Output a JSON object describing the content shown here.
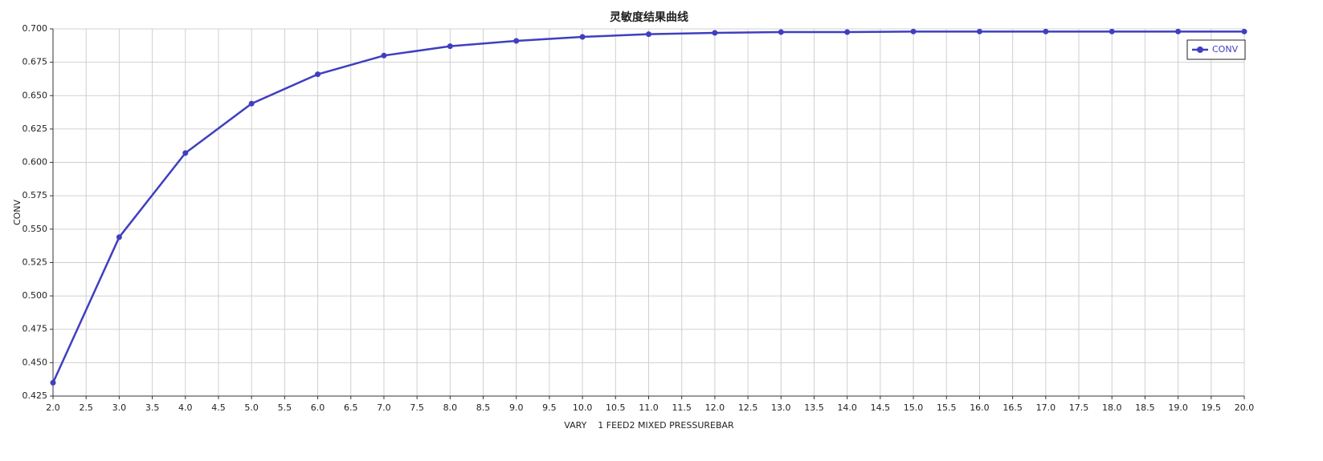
{
  "chart_data": {
    "type": "line",
    "title": "灵敏度结果曲线",
    "x_label": "VARY    1 FEED2 MIXED PRESSUREBAR",
    "y_label": "CONV",
    "x": [
      2,
      3,
      4,
      5,
      6,
      7,
      8,
      9,
      10,
      11,
      12,
      13,
      14,
      15,
      16,
      17,
      18,
      19,
      20
    ],
    "series": [
      {
        "name": "CONV",
        "color": "#3f3fbf",
        "values": [
          0.435,
          0.544,
          0.607,
          0.644,
          0.666,
          0.68,
          0.687,
          0.691,
          0.694,
          0.696,
          0.697,
          0.6976,
          0.6976,
          0.698,
          0.698,
          0.698,
          0.698,
          0.698,
          0.698
        ]
      }
    ],
    "xlim": [
      2,
      20
    ],
    "xticks": [
      {
        "value": 2,
        "label": "2.0"
      },
      2.5,
      {
        "value": 3,
        "label": "3.0"
      },
      3.5,
      {
        "value": 4,
        "label": "4.0"
      },
      4.5,
      {
        "value": 5,
        "label": "5.0"
      },
      5.5,
      {
        "value": 6,
        "label": "6.0"
      },
      6.5,
      {
        "value": 7,
        "label": "7.0"
      },
      7.5,
      {
        "value": 8,
        "label": "8.0"
      },
      8.5,
      {
        "value": 9,
        "label": "9.0"
      },
      9.5,
      {
        "value": 10,
        "label": "10.0"
      },
      10.5,
      {
        "value": 11,
        "label": "11.0"
      },
      11.5,
      {
        "value": 12,
        "label": "12.0"
      },
      12.5,
      {
        "value": 13,
        "label": "13.0"
      },
      13.5,
      {
        "value": 14,
        "label": "14.0"
      },
      14.5,
      {
        "value": 15,
        "label": "15.0"
      },
      15.5,
      {
        "value": 16,
        "label": "16.0"
      },
      16.5,
      {
        "value": 17,
        "label": "17.0"
      },
      17.5,
      {
        "value": 18,
        "label": "18.0"
      },
      18.5,
      {
        "value": 19,
        "label": "19.0"
      },
      19.5,
      {
        "value": 20,
        "label": "20.0"
      }
    ],
    "ylim": [
      0.425,
      0.7
    ],
    "yticks": [
      0.425,
      {
        "value": 0.45,
        "label": "0.450"
      },
      0.475,
      {
        "value": 0.5,
        "label": "0.500"
      },
      0.525,
      {
        "value": 0.55,
        "label": "0.550"
      },
      0.575,
      {
        "value": 0.6,
        "label": "0.600"
      },
      0.625,
      {
        "value": 0.65,
        "label": "0.650"
      },
      0.675,
      {
        "value": 0.7,
        "label": "0.700"
      }
    ],
    "grid": true,
    "legend": "top-right"
  }
}
